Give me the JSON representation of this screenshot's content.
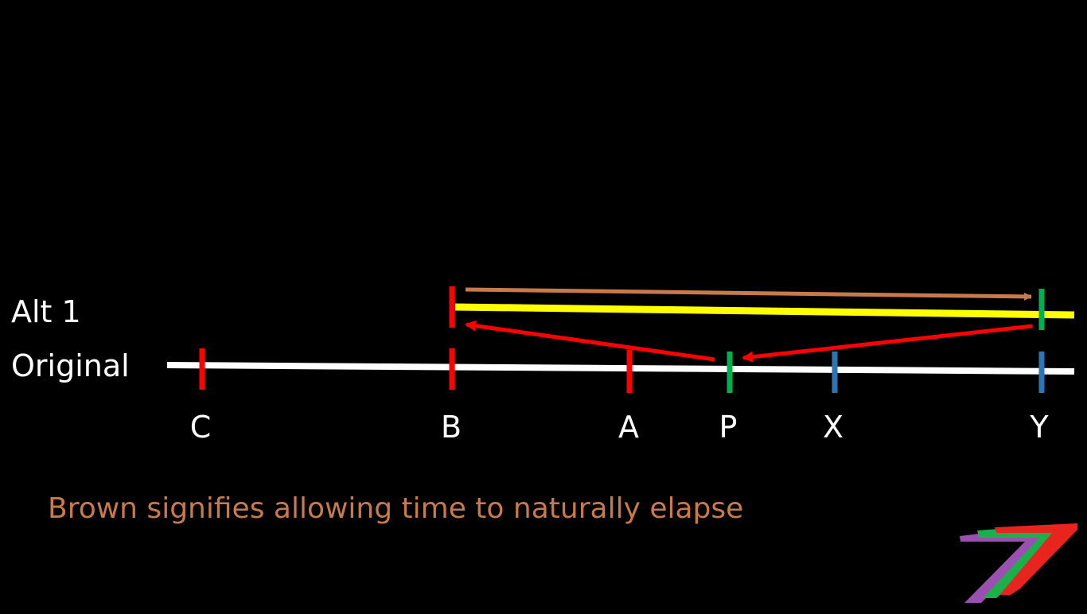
{
  "slide": {
    "background": "#000000",
    "timelines": {
      "alt1_label": "Alt 1",
      "original_label": "Original"
    },
    "markers": {
      "C": "C",
      "B": "B",
      "A": "A",
      "P": "P",
      "X": "X",
      "Y": "Y"
    },
    "caption": "Brown signifies allowing time to naturally elapse",
    "colors": {
      "original_line": "#FFFFFF",
      "alt1_line": "#FFFF00",
      "red_tick": "#FF0000",
      "green_tick": "#00B050",
      "blue_tick": "#2E75B6",
      "brown_arrow": "#C87A4A",
      "red_arrow": "#FF0000",
      "caption": "#C87A4A",
      "logo_purple": "#9B4FB0",
      "logo_green": "#1DB04A",
      "logo_red": "#E8241F"
    },
    "logo_icon": "seven-stripes-logo-icon"
  }
}
